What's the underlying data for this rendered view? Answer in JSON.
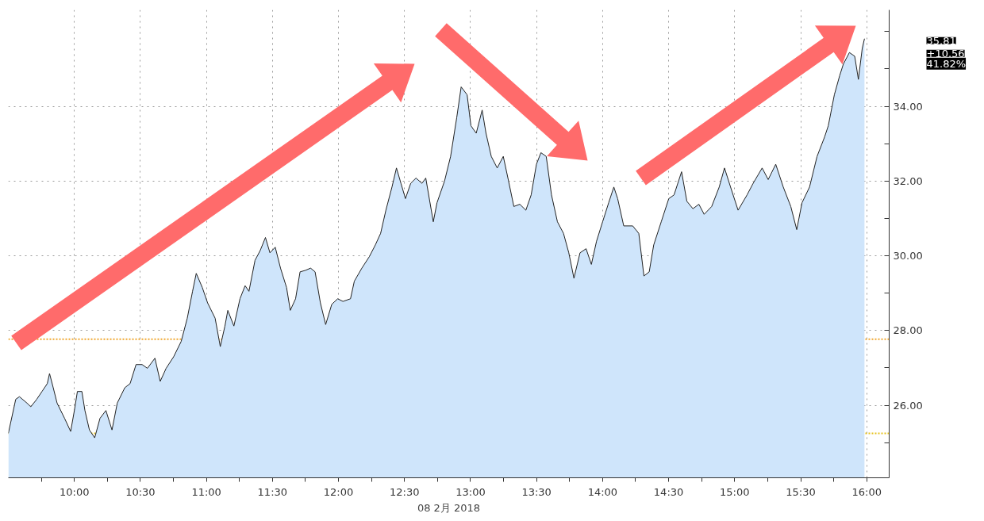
{
  "chart_data": {
    "type": "area",
    "xlabel": "08 2月 2018",
    "x": [
      9.5,
      9.556,
      9.584,
      9.641,
      9.67,
      9.715,
      9.755,
      9.795,
      9.812,
      9.84,
      9.869,
      9.926,
      9.972,
      10.0,
      10.023,
      10.057,
      10.08,
      10.114,
      10.154,
      10.194,
      10.239,
      10.285,
      10.325,
      10.382,
      10.422,
      10.467,
      10.513,
      10.553,
      10.61,
      10.65,
      10.695,
      10.752,
      10.809,
      10.855,
      10.895,
      10.923,
      10.969,
      11.009,
      11.066,
      11.105,
      11.14,
      11.162,
      11.208,
      11.254,
      11.293,
      11.322,
      11.368,
      11.407,
      11.447,
      11.481,
      11.521,
      11.561,
      11.607,
      11.635,
      11.675,
      11.709,
      11.749,
      11.789,
      11.823,
      11.863,
      11.903,
      11.949,
      11.994,
      12.034,
      12.091,
      12.12,
      12.177,
      12.234,
      12.279,
      12.319,
      12.359,
      12.405,
      12.439,
      12.473,
      12.507,
      12.547,
      12.587,
      12.632,
      12.661,
      12.718,
      12.746,
      12.803,
      12.849,
      12.895,
      12.929,
      12.974,
      13.003,
      13.043,
      13.088,
      13.117,
      13.157,
      13.202,
      13.248,
      13.288,
      13.328,
      13.373,
      13.419,
      13.459,
      13.499,
      13.533,
      13.573,
      13.613,
      13.658,
      13.704,
      13.744,
      13.783,
      13.829,
      13.875,
      13.915,
      13.954,
      14.0,
      14.046,
      14.085,
      14.114,
      14.16,
      14.228,
      14.274,
      14.313,
      14.353,
      14.387,
      14.444,
      14.501,
      14.541,
      14.598,
      14.638,
      14.684,
      14.729,
      14.769,
      14.826,
      14.883,
      14.923,
      14.969,
      15.026,
      15.094,
      15.14,
      15.208,
      15.254,
      15.311,
      15.368,
      15.425,
      15.47,
      15.51,
      15.567,
      15.624,
      15.681,
      15.709,
      15.755,
      15.795,
      15.823,
      15.869,
      15.909,
      15.937,
      15.966,
      15.983
    ],
    "series": [
      {
        "color": "#cfe5fb",
        "values": [
          25.25,
          26.16,
          26.23,
          26.06,
          25.96,
          26.16,
          26.37,
          26.58,
          26.85,
          26.47,
          26.06,
          25.65,
          25.3,
          25.86,
          26.37,
          26.37,
          25.86,
          25.34,
          25.13,
          25.65,
          25.86,
          25.34,
          26.06,
          26.47,
          26.58,
          27.09,
          27.09,
          26.99,
          27.26,
          26.64,
          26.99,
          27.3,
          27.71,
          28.33,
          29.05,
          29.53,
          29.15,
          28.74,
          28.33,
          27.57,
          28.12,
          28.54,
          28.12,
          28.85,
          29.2,
          29.05,
          29.88,
          30.14,
          30.49,
          30.08,
          30.23,
          29.67,
          29.15,
          28.54,
          28.85,
          29.57,
          29.61,
          29.67,
          29.57,
          28.74,
          28.16,
          28.7,
          28.85,
          28.78,
          28.85,
          29.32,
          29.67,
          29.98,
          30.29,
          30.6,
          31.22,
          31.84,
          32.35,
          31.94,
          31.53,
          31.94,
          32.08,
          31.94,
          32.08,
          30.91,
          31.42,
          32.0,
          32.66,
          33.69,
          34.52,
          34.31,
          33.48,
          33.28,
          33.9,
          33.28,
          32.66,
          32.35,
          32.66,
          32.0,
          31.32,
          31.38,
          31.22,
          31.63,
          32.45,
          32.76,
          32.66,
          31.63,
          30.91,
          30.6,
          30.08,
          29.4,
          30.08,
          30.19,
          29.77,
          30.39,
          30.91,
          31.42,
          31.84,
          31.53,
          30.8,
          30.8,
          30.6,
          29.46,
          29.57,
          30.29,
          30.91,
          31.53,
          31.63,
          32.25,
          31.46,
          31.26,
          31.38,
          31.11,
          31.32,
          31.84,
          32.35,
          31.84,
          31.22,
          31.63,
          31.94,
          32.35,
          32.04,
          32.45,
          31.84,
          31.32,
          30.7,
          31.42,
          31.84,
          32.66,
          33.18,
          33.48,
          34.31,
          34.82,
          35.13,
          35.44,
          35.34,
          34.72,
          35.55,
          35.81
        ]
      }
    ],
    "xlim": [
      9.5,
      16.17
    ],
    "xticks": [
      {
        "value": 9.75,
        "label": null
      },
      {
        "value": 10,
        "label": "10:00"
      },
      {
        "value": 10.25,
        "label": null
      },
      {
        "value": 10.5,
        "label": "10:30"
      },
      {
        "value": 10.75,
        "label": null
      },
      {
        "value": 11,
        "label": "11:00"
      },
      {
        "value": 11.25,
        "label": null
      },
      {
        "value": 11.5,
        "label": "11:30"
      },
      {
        "value": 11.75,
        "label": null
      },
      {
        "value": 12,
        "label": "12:00"
      },
      {
        "value": 12.25,
        "label": null
      },
      {
        "value": 12.5,
        "label": "12:30"
      },
      {
        "value": 12.75,
        "label": null
      },
      {
        "value": 13,
        "label": "13:00"
      },
      {
        "value": 13.25,
        "label": null
      },
      {
        "value": 13.5,
        "label": "13:30"
      },
      {
        "value": 13.75,
        "label": null
      },
      {
        "value": 14,
        "label": "14:00"
      },
      {
        "value": 14.25,
        "label": null
      },
      {
        "value": 14.5,
        "label": "14:30"
      },
      {
        "value": 14.75,
        "label": null
      },
      {
        "value": 15,
        "label": "15:00"
      },
      {
        "value": 15.25,
        "label": null
      },
      {
        "value": 15.5,
        "label": "15:30"
      },
      {
        "value": 15.75,
        "label": null
      },
      {
        "value": 16,
        "label": "16:00"
      }
    ],
    "ylim": [
      24.06,
      36.58
    ],
    "yticks": [
      {
        "value": 25,
        "label": null
      },
      {
        "value": 26,
        "label": "26.00"
      },
      {
        "value": 27,
        "label": null
      },
      {
        "value": 28,
        "label": "28.00"
      },
      {
        "value": 29,
        "label": null
      },
      {
        "value": 30,
        "label": "30.00"
      },
      {
        "value": 31,
        "label": null
      },
      {
        "value": 32,
        "label": "32.00"
      },
      {
        "value": 33,
        "label": null
      },
      {
        "value": 34,
        "label": "34.00"
      },
      {
        "value": 35,
        "label": null
      },
      {
        "value": 36,
        "label": null
      }
    ],
    "ref_lines": [
      {
        "axis": "y",
        "value": 27.77,
        "color": "#f0a830",
        "line_style": "dotted"
      },
      {
        "axis": "y",
        "value": 25.25,
        "color": "#e6c21e",
        "line_style": "dotted"
      }
    ],
    "annotations": [
      "35.81",
      "+10.56",
      "41.82%"
    ],
    "grid": true
  }
}
